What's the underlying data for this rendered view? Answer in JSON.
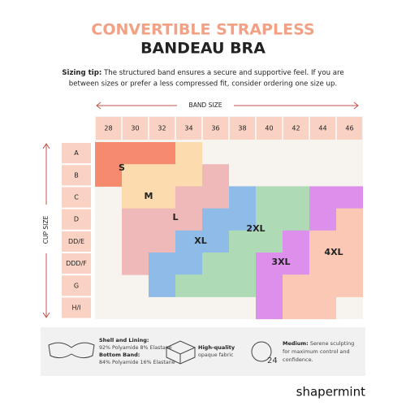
{
  "header": {
    "title_line1": "CONVERTIBLE STRAPLESS",
    "title_line2": "BANDEAU BRA"
  },
  "tip": {
    "label": "Sizing tip:",
    "text_line1": "The structured band ensures a secure and supportive feel. If you are",
    "text_line2": "between sizes or prefer a less compressed fit, consider ordering one size up."
  },
  "grid": {
    "band_size_label": "BAND SIZE",
    "band_sizes": [
      "28",
      "30",
      "32",
      "34",
      "36",
      "38",
      "40",
      "42",
      "44",
      "46"
    ],
    "cup_size_label": "CUP SIZE",
    "cups": [
      "A",
      "B",
      "C",
      "D",
      "DD/E",
      "DDD/F",
      "G",
      "H/I"
    ],
    "sizes": [
      "S",
      "M",
      "L",
      "XL",
      "2XL",
      "3XL",
      "4XL"
    ]
  },
  "footer": {
    "shell_label": "Shell and Lining:",
    "shell_text": "92% Polyamide 8% Elastane",
    "band_label": "Bottom Band:",
    "band_text": "84% Polyamide 16% Elastane",
    "fabric_label": "High-quality",
    "fabric_text": "opaque fabric",
    "medium_label": "Medium:",
    "medium_text1": "Serene sculpting",
    "medium_text2": "for maximum control and",
    "medium_text3": "confidence.",
    "icon_number": "24"
  },
  "brand": "shapermint"
}
